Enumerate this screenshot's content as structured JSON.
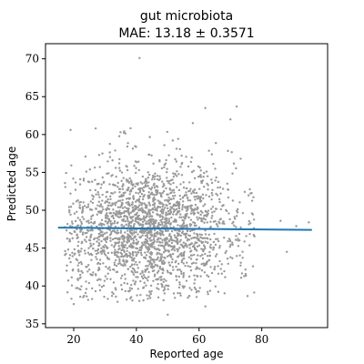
{
  "chart_data": {
    "type": "scatter",
    "title": "gut microbiota",
    "subtitle": "MAE: 13.18 ± 0.3571",
    "xlabel": "Reported age",
    "ylabel": "Predicted age",
    "xlim": [
      11,
      101
    ],
    "ylim": [
      34.5,
      72
    ],
    "xticks": [
      20,
      40,
      60,
      80
    ],
    "yticks": [
      35,
      40,
      45,
      50,
      55,
      60,
      65,
      70
    ],
    "grid": false,
    "colors": {
      "points": "#999999",
      "trend": "#1f77b4",
      "frame": "#000000"
    },
    "trend_line": {
      "x": [
        15,
        96
      ],
      "y": [
        47.7,
        47.4
      ]
    },
    "points_summary": {
      "n": 2200,
      "x_range": [
        17,
        95
      ],
      "y_center": 47.6,
      "y_spread_sd": 4.4,
      "y_range": [
        36,
        70
      ]
    },
    "notable_points": [
      {
        "x": 41,
        "y": 70.1
      },
      {
        "x": 62,
        "y": 63.5
      },
      {
        "x": 72,
        "y": 63.7
      },
      {
        "x": 70,
        "y": 62.0
      },
      {
        "x": 19,
        "y": 60.6
      },
      {
        "x": 27,
        "y": 60.8
      },
      {
        "x": 58,
        "y": 61.5
      },
      {
        "x": 50,
        "y": 36.2
      },
      {
        "x": 20,
        "y": 37.6
      },
      {
        "x": 62,
        "y": 37.3
      },
      {
        "x": 34,
        "y": 37.9
      },
      {
        "x": 86,
        "y": 48.6
      },
      {
        "x": 88,
        "y": 44.5
      },
      {
        "x": 95,
        "y": 48.4
      },
      {
        "x": 91,
        "y": 47.9
      }
    ]
  }
}
